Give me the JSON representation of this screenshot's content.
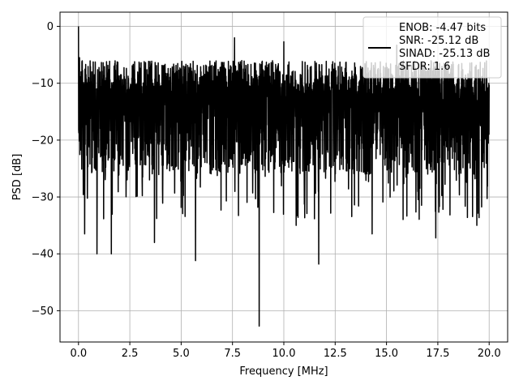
{
  "chart_data": {
    "type": "line",
    "title": "",
    "xlabel": "Frequency [MHz]",
    "ylabel": "PSD [dB]",
    "xlim": [
      -0.9,
      20.9
    ],
    "ylim": [
      -55.5,
      2.5
    ],
    "x_ticks": [
      0.0,
      2.5,
      5.0,
      7.5,
      10.0,
      12.5,
      15.0,
      17.5,
      20.0
    ],
    "x_tick_labels": [
      "0.0",
      "2.5",
      "5.0",
      "7.5",
      "10.0",
      "12.5",
      "15.0",
      "17.5",
      "20.0"
    ],
    "y_ticks": [
      0,
      -10,
      -20,
      -30,
      -40,
      -50
    ],
    "y_tick_labels": [
      "0",
      "−10",
      "−20",
      "−30",
      "−40",
      "−50"
    ],
    "grid": true,
    "legend_position": "top-right",
    "series": [
      {
        "color": "#000000",
        "x_start": 0.0,
        "x_end": 20.0,
        "band_top_db": -6,
        "band_bottom_db": -26,
        "peaks": [
          {
            "x": 0.0,
            "y": 0.0
          },
          {
            "x": 0.05,
            "y": -5.5
          },
          {
            "x": 7.6,
            "y": -2.0
          },
          {
            "x": 10.0,
            "y": -2.7
          },
          {
            "x": 15.5,
            "y": -3.3
          }
        ],
        "dips": [
          {
            "x": 0.3,
            "y": -36.5
          },
          {
            "x": 0.9,
            "y": -40.0
          },
          {
            "x": 1.6,
            "y": -40.0
          },
          {
            "x": 3.7,
            "y": -38.0
          },
          {
            "x": 5.7,
            "y": -41.2
          },
          {
            "x": 8.8,
            "y": -52.7
          },
          {
            "x": 10.6,
            "y": -35.0
          },
          {
            "x": 11.7,
            "y": -41.8
          },
          {
            "x": 14.3,
            "y": -36.5
          },
          {
            "x": 17.4,
            "y": -37.2
          },
          {
            "x": 19.4,
            "y": -35.0
          }
        ]
      }
    ],
    "legend_lines": [
      "ENOB: -4.47 bits",
      "SNR: -25.12 dB",
      "SINAD: -25.13 dB",
      "SFDR: 1.6"
    ]
  }
}
